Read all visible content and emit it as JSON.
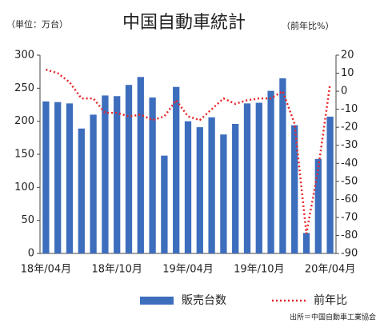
{
  "chart_data": {
    "type": "bar",
    "title": "中国自動車統計",
    "left_unit": "（単位：万台）",
    "right_unit": "（前年比%）",
    "source": "出所＝中国自動車工業協会",
    "categories": [
      "18年/04月",
      null,
      null,
      null,
      null,
      null,
      "18年/10月",
      null,
      null,
      null,
      null,
      null,
      "19年/04月",
      null,
      null,
      null,
      null,
      null,
      "19年/10月",
      null,
      null,
      null,
      null,
      null,
      "20年/04月"
    ],
    "series": [
      {
        "name": "販売台数",
        "type": "bar",
        "color": "#3d6dbd",
        "values": [
          230,
          229,
          227,
          189,
          210,
          239,
          238,
          255,
          267,
          236,
          148,
          252,
          200,
          191,
          206,
          180,
          196,
          227,
          228,
          246,
          265,
          194,
          31,
          143,
          207
        ]
      },
      {
        "name": "前年比",
        "type": "line",
        "axis": "y2",
        "color": "#e8262a",
        "values": [
          12,
          10,
          5,
          -4,
          -4,
          -12,
          -12,
          -14,
          -13,
          -16,
          -14,
          -5,
          -14,
          -16,
          -10,
          -4,
          -7,
          -5,
          -4,
          -4,
          0,
          -18,
          -79,
          -43,
          4
        ]
      }
    ],
    "ylim": [
      0,
      300
    ],
    "yticks": [
      0,
      50,
      100,
      150,
      200,
      250,
      300
    ],
    "y2lim": [
      -90,
      20
    ],
    "y2ticks": [
      20,
      10,
      0,
      -10,
      -20,
      -30,
      -40,
      -50,
      -60,
      -70,
      -80,
      -90
    ],
    "legend": "bottom"
  }
}
